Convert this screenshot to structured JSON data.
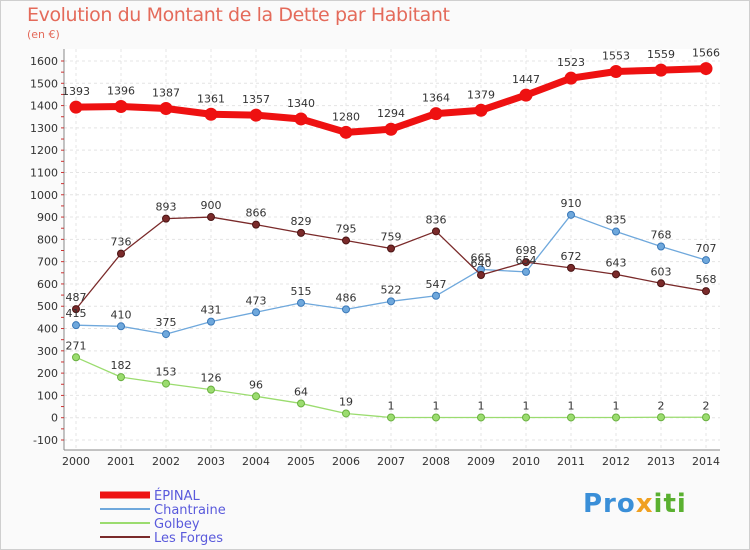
{
  "chart_data": {
    "type": "line",
    "title": "Evolution du Montant de la Dette par Habitant",
    "subtitle": "(en €)",
    "x": [
      "2000",
      "2001",
      "2002",
      "2003",
      "2004",
      "2005",
      "2006",
      "2007",
      "2008",
      "2009",
      "2010",
      "2011",
      "2012",
      "2013",
      "2014"
    ],
    "ylim": [
      -100,
      1600
    ],
    "yticks": [
      "-100",
      "0",
      "100",
      "200",
      "300",
      "400",
      "500",
      "600",
      "700",
      "800",
      "900",
      "1000",
      "1100",
      "1200",
      "1300",
      "1400",
      "1500",
      "1600"
    ],
    "grid": true,
    "legend_position": "bottom-left",
    "series": [
      {
        "name": "ÉPINAL",
        "color": "#ee1111",
        "values": [
          1393,
          1396,
          1387,
          1361,
          1357,
          1340,
          1280,
          1294,
          1364,
          1379,
          1447,
          1523,
          1553,
          1559,
          1566
        ],
        "labels": [
          "1393",
          "1396",
          "1387",
          "1361",
          "1357",
          "1340",
          "1280",
          "1294",
          "1364",
          "1379",
          "1447",
          "1523",
          "1553",
          "1559",
          "1566"
        ]
      },
      {
        "name": "Chantraine",
        "color": "#6fa8dc",
        "values": [
          415,
          410,
          375,
          431,
          473,
          515,
          486,
          522,
          547,
          665,
          654,
          910,
          835,
          768,
          707
        ],
        "labels": [
          "415",
          "410",
          "375",
          "431",
          "473",
          "515",
          "486",
          "522",
          "547",
          "665",
          "654",
          "910",
          "835",
          "768",
          "707"
        ]
      },
      {
        "name": "Golbey",
        "color": "#9bdc6f",
        "values": [
          271,
          182,
          153,
          126,
          96,
          64,
          19,
          1,
          1,
          1,
          1,
          1,
          1,
          2,
          2
        ],
        "labels": [
          "271",
          "182",
          "153",
          "126",
          "96",
          "64",
          "19",
          "1",
          "1",
          "1",
          "1",
          "1",
          "1",
          "2",
          "2"
        ]
      },
      {
        "name": "Les Forges",
        "color": "#7a2a2a",
        "values": [
          487,
          736,
          893,
          900,
          866,
          829,
          795,
          759,
          836,
          640,
          698,
          672,
          643,
          603,
          568
        ],
        "labels": [
          "487",
          "736",
          "893",
          "900",
          "866",
          "829",
          "795",
          "759",
          "836",
          "640",
          "698",
          "672",
          "643",
          "603",
          "568"
        ]
      }
    ]
  },
  "brand": {
    "p1": "Pro",
    "p2": "x",
    "p3": "iti"
  }
}
